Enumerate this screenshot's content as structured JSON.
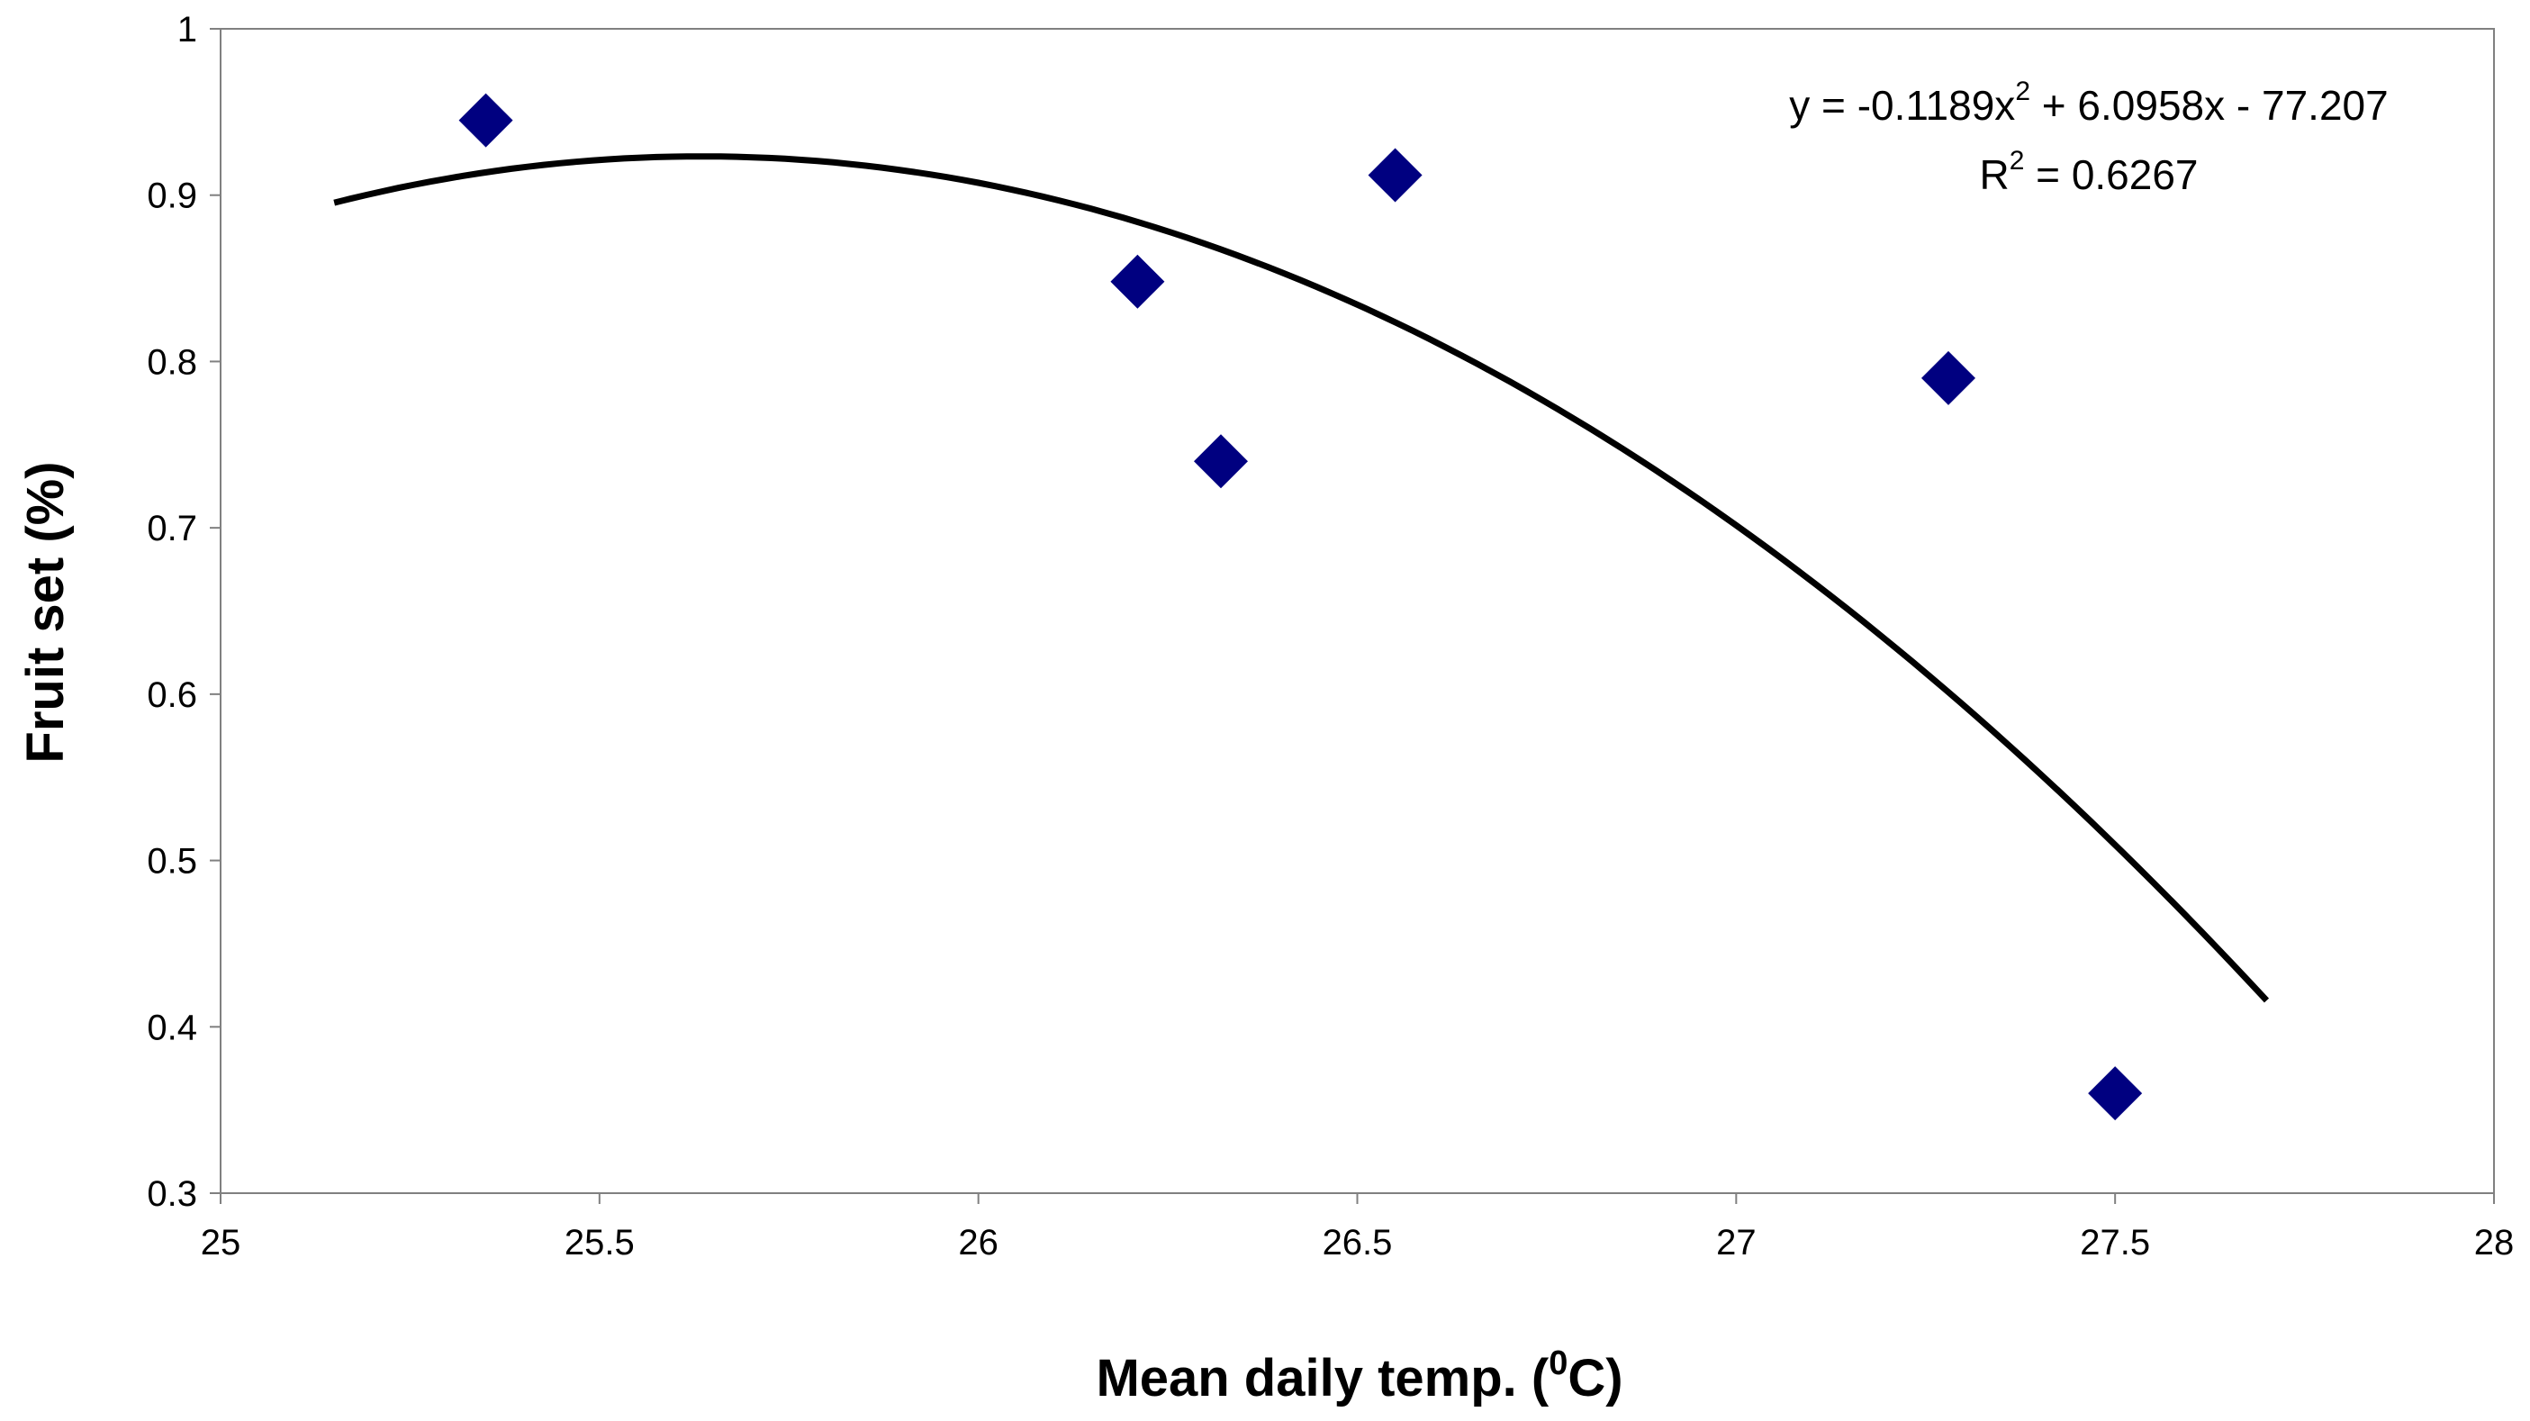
{
  "chart_data": {
    "type": "scatter",
    "title": "",
    "xlabel": "Mean daily temp. (",
    "xlabel_sup": "0",
    "xlabel_tail": "C)",
    "ylabel": "Fruit set  (%)",
    "xlim": [
      25,
      28
    ],
    "ylim": [
      0.3,
      1.0
    ],
    "x_ticks": [
      25,
      25.5,
      26,
      26.5,
      27,
      27.5,
      28
    ],
    "x_tick_labels": [
      "25",
      "25.5",
      "26",
      "26.5",
      "27",
      "27.5",
      "28"
    ],
    "y_ticks": [
      0.3,
      0.4,
      0.5,
      0.6,
      0.7,
      0.8,
      0.9,
      1.0
    ],
    "y_tick_labels": [
      "0.3",
      "0.4",
      "0.5",
      "0.6",
      "0.7",
      "0.8",
      "0.9",
      "1"
    ],
    "series": [
      {
        "name": "Fruit set",
        "marker": "diamond",
        "color": "#000080",
        "points": [
          {
            "x": 25.35,
            "y": 0.945
          },
          {
            "x": 26.21,
            "y": 0.848
          },
          {
            "x": 26.32,
            "y": 0.74
          },
          {
            "x": 26.55,
            "y": 0.912
          },
          {
            "x": 27.28,
            "y": 0.79
          },
          {
            "x": 27.5,
            "y": 0.36
          }
        ]
      }
    ],
    "trendline": {
      "type": "polynomial",
      "coefficients": [
        -0.1189,
        6.0958,
        -77.207
      ],
      "x_range": [
        25.15,
        27.7
      ],
      "color": "#000000"
    },
    "equation": {
      "line1_a": "y = -0.1189x",
      "line1_sup": "2",
      "line1_b": " + 6.0958x - 77.207",
      "line2_a": "R",
      "line2_sup": "2",
      "line2_b": " = 0.6267"
    }
  }
}
